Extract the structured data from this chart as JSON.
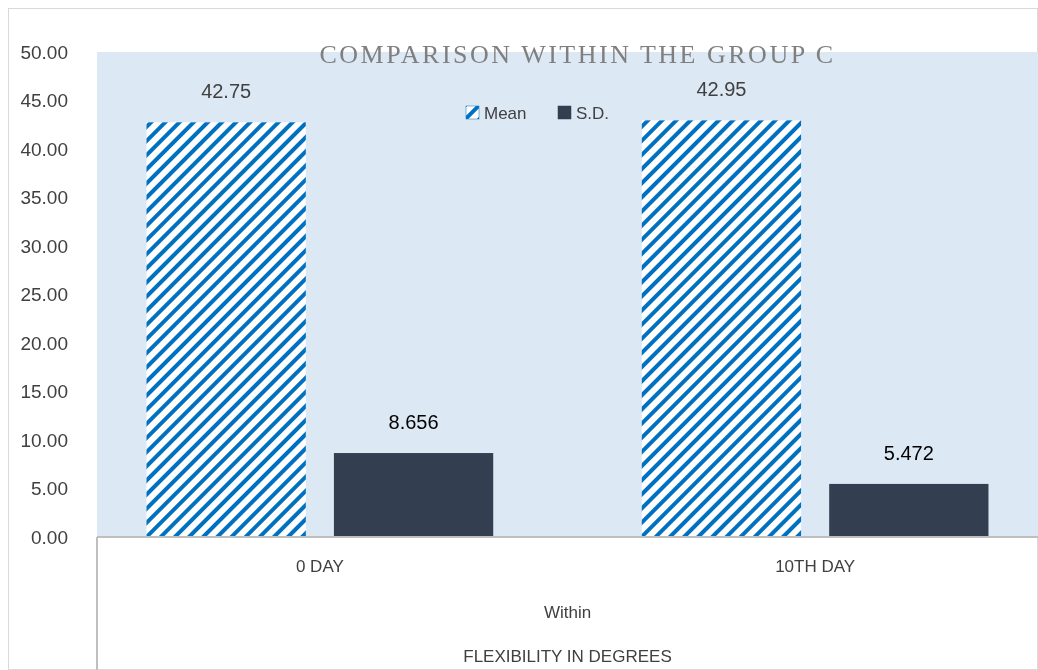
{
  "chart_data": {
    "type": "bar",
    "title": "COMPARISON WITHIN THE GROUP C",
    "xlabel": "FLEXIBILITY IN DEGREES",
    "annotations": [
      "Within"
    ],
    "categories": [
      "0 DAY",
      "10TH DAY"
    ],
    "series": [
      {
        "name": "Mean",
        "color": "#0070c0",
        "values": [
          42.75,
          42.95
        ],
        "value_labels": [
          "42.75",
          "42.95"
        ]
      },
      {
        "name": "S.D.",
        "color": "#333f50",
        "values": [
          8.656,
          5.472
        ],
        "value_labels": [
          "8.656",
          "5.472"
        ]
      }
    ],
    "ylim": [
      0,
      50
    ],
    "yticks": [
      {
        "value": 0,
        "label": "0.00"
      },
      {
        "value": 5,
        "label": "5.00"
      },
      {
        "value": 10,
        "label": "10.00"
      },
      {
        "value": 15,
        "label": "15.00"
      },
      {
        "value": 20,
        "label": "20.00"
      },
      {
        "value": 25,
        "label": "25.00"
      },
      {
        "value": 30,
        "label": "30.00"
      },
      {
        "value": 35,
        "label": "35.00"
      },
      {
        "value": 40,
        "label": "40.00"
      },
      {
        "value": 45,
        "label": "45.00"
      },
      {
        "value": 50,
        "label": "50.00"
      }
    ],
    "legend": "top",
    "grid": false
  }
}
